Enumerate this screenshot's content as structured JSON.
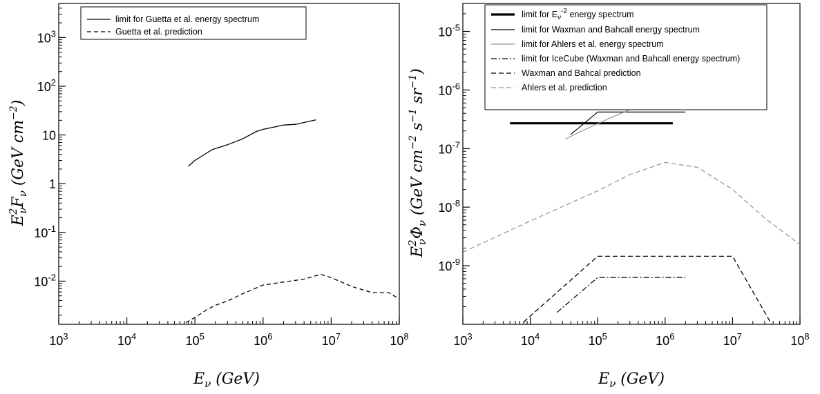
{
  "chart_data": [
    {
      "type": "line",
      "title": "",
      "xlabel": "E_ν (GeV)",
      "ylabel": "E²_ν F_ν (GeV cm⁻²)",
      "xscale": "log",
      "yscale": "log",
      "xlim": [
        1000,
        100000000
      ],
      "ylim": [
        0.0013,
        5000
      ],
      "xticks": [
        {
          "value": 1000,
          "base": "10",
          "exp": "3"
        },
        {
          "value": 10000,
          "base": "10",
          "exp": "4"
        },
        {
          "value": 100000,
          "base": "10",
          "exp": "5"
        },
        {
          "value": 1000000,
          "base": "10",
          "exp": "6"
        },
        {
          "value": 10000000,
          "base": "10",
          "exp": "7"
        },
        {
          "value": 100000000,
          "base": "10",
          "exp": "8"
        }
      ],
      "yticks": [
        {
          "value": 0.01,
          "base": "10",
          "exp": "-2"
        },
        {
          "value": 0.1,
          "base": "10",
          "exp": "-1"
        },
        {
          "value": 1,
          "base": "1",
          "exp": ""
        },
        {
          "value": 10,
          "base": "10",
          "exp": ""
        },
        {
          "value": 100,
          "base": "10",
          "exp": "2"
        },
        {
          "value": 1000,
          "base": "10",
          "exp": "3"
        }
      ],
      "grid": false,
      "legend_position": "top",
      "series": [
        {
          "name": "limit for Guetta et al. energy spectrum",
          "color": "#000000",
          "width": 1.3,
          "dash": "",
          "x": [
            80000,
            100000,
            150000,
            180000,
            300000,
            500000,
            800000,
            1000000,
            2000000,
            3000000,
            6000000
          ],
          "y": [
            2.3,
            3.0,
            4.3,
            5.0,
            6.3,
            8.3,
            11.8,
            13.0,
            16.0,
            16.5,
            20.5
          ]
        },
        {
          "name": "Guetta et al. prediction",
          "color": "#000000",
          "width": 1.3,
          "dash": "6,4",
          "x": [
            60000,
            100000,
            150000,
            200000,
            300000,
            500000,
            1000000,
            2000000,
            4000000,
            7000000,
            10000000,
            20000000,
            40000000,
            70000000,
            100000000
          ],
          "y": [
            0.0012,
            0.0018,
            0.0026,
            0.0032,
            0.0039,
            0.0055,
            0.0083,
            0.0096,
            0.011,
            0.0138,
            0.0118,
            0.0078,
            0.0058,
            0.0058,
            0.0043
          ]
        }
      ]
    },
    {
      "type": "line",
      "title": "",
      "xlabel": "E_ν (GeV)",
      "ylabel": "E²_ν Φ_ν (GeV cm⁻² s⁻¹ sr⁻¹)",
      "xscale": "log",
      "yscale": "log",
      "xlim": [
        1000,
        100000000
      ],
      "ylim": [
        1e-10,
        3e-05
      ],
      "xticks": [
        {
          "value": 1000,
          "base": "10",
          "exp": "3"
        },
        {
          "value": 10000,
          "base": "10",
          "exp": "4"
        },
        {
          "value": 100000,
          "base": "10",
          "exp": "5"
        },
        {
          "value": 1000000,
          "base": "10",
          "exp": "6"
        },
        {
          "value": 10000000,
          "base": "10",
          "exp": "7"
        },
        {
          "value": 100000000,
          "base": "10",
          "exp": "8"
        }
      ],
      "yticks": [
        {
          "value": 1e-09,
          "base": "10",
          "exp": "-9"
        },
        {
          "value": 1e-08,
          "base": "10",
          "exp": "-8"
        },
        {
          "value": 1e-07,
          "base": "10",
          "exp": "-7"
        },
        {
          "value": 1e-06,
          "base": "10",
          "exp": "-6"
        },
        {
          "value": 1e-05,
          "base": "10",
          "exp": "-5"
        }
      ],
      "grid": false,
      "legend_position": "top",
      "series": [
        {
          "name": "limit for E_ν^-2 energy spectrum",
          "color": "#000000",
          "width": 3.2,
          "dash": "",
          "x": [
            5000,
            1300000
          ],
          "y": [
            2.7e-07,
            2.7e-07
          ]
        },
        {
          "name": "limit for Waxman and Bahcall energy spectrum",
          "color": "#000000",
          "width": 1.2,
          "dash": "",
          "x": [
            40000,
            100000,
            2000000
          ],
          "y": [
            1.75e-07,
            4.2e-07,
            4.2e-07
          ]
        },
        {
          "name": "limit for Ahlers et al. energy spectrum",
          "color": "#999999",
          "width": 1.3,
          "dash": "",
          "x": [
            33000,
            70000,
            150000,
            300000,
            600000,
            1000000,
            1500000,
            2000000
          ],
          "y": [
            1.45e-07,
            2.2e-07,
            3.3e-07,
            4.6e-07,
            5.8e-07,
            6.3e-07,
            6.2e-07,
            5.8e-07
          ]
        },
        {
          "name": "limit for IceCube (Waxman and Bahcall energy spectrum)",
          "color": "#000000",
          "width": 1.2,
          "dash": "8,3,2,3",
          "x": [
            25000,
            100000,
            2000000
          ],
          "y": [
            1.6e-10,
            6.3e-10,
            6.3e-10
          ]
        },
        {
          "name": "Waxman and Bahcal prediction",
          "color": "#000000",
          "width": 1.3,
          "dash": "7,4",
          "x": [
            8000,
            100000,
            10000000,
            40000000
          ],
          "y": [
            1.1e-10,
            1.45e-09,
            1.45e-09,
            9e-11
          ]
        },
        {
          "name": "Ahlers et al. prediction",
          "color": "#999999",
          "width": 1.3,
          "dash": "7,4",
          "x": [
            1000,
            10000,
            100000,
            300000,
            1000000,
            3000000,
            10000000,
            30000000,
            100000000
          ],
          "y": [
            1.7e-09,
            5.8e-09,
            1.9e-08,
            3.6e-08,
            5.8e-08,
            4.8e-08,
            2e-08,
            6.5e-09,
            2.3e-09
          ]
        }
      ]
    }
  ]
}
